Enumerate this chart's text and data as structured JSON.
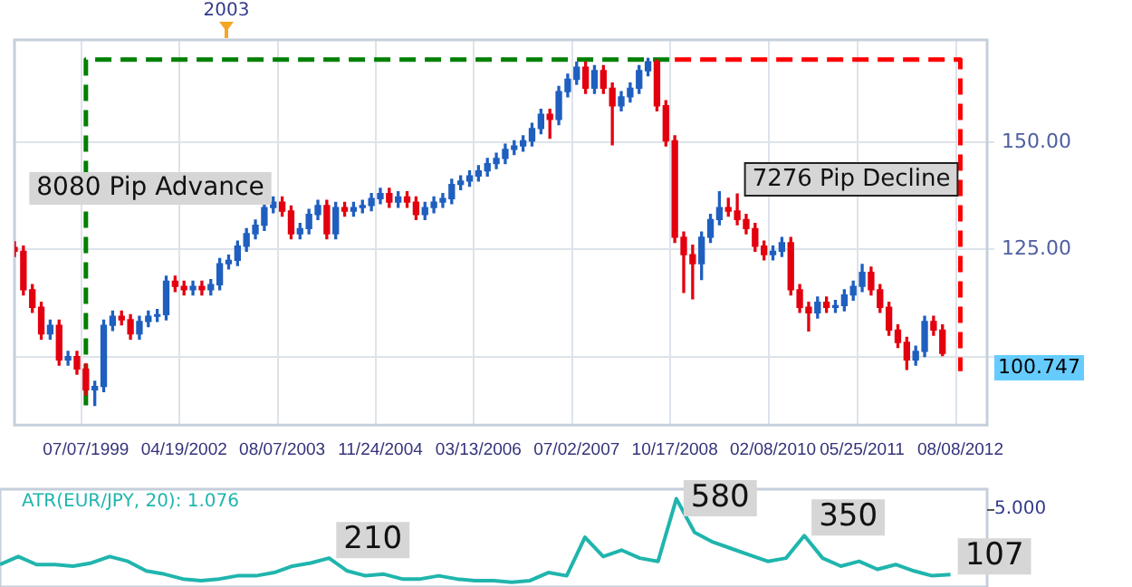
{
  "chart_data": [
    {
      "type": "candlestick",
      "categories": [
        null,
        null,
        null,
        null,
        null,
        null,
        null,
        null,
        "07/07/1999",
        null,
        null,
        null,
        null,
        null,
        null,
        null,
        null,
        null,
        null,
        "04/19/2002",
        null,
        null,
        null,
        null,
        null,
        null,
        null,
        null,
        null,
        null,
        "08/07/2003",
        null,
        null,
        null,
        null,
        null,
        null,
        null,
        null,
        null,
        null,
        "11/24/2004",
        null,
        null,
        null,
        null,
        null,
        null,
        null,
        null,
        null,
        null,
        "03/13/2006",
        null,
        null,
        null,
        null,
        null,
        null,
        null,
        null,
        null,
        null,
        "07/02/2007",
        null,
        null,
        null,
        null,
        null,
        null,
        null,
        null,
        null,
        null,
        "10/17/2008",
        null,
        null,
        null,
        null,
        null,
        null,
        null,
        null,
        null,
        null,
        "02/08/2010",
        null,
        null,
        null,
        null,
        null,
        null,
        null,
        null,
        null,
        "05/25/2011",
        null,
        null,
        null,
        null,
        null,
        null,
        null,
        null,
        null,
        null,
        "08/08/2012",
        null,
        null,
        null
      ],
      "ohlc": [
        [
          125.5,
          126.8,
          123.4,
          124.6
        ],
        [
          124.6,
          125.8,
          114.4,
          115.6
        ],
        [
          115.6,
          116.8,
          110.3,
          111.5
        ],
        [
          111.5,
          112.7,
          104.1,
          105.3
        ],
        [
          105.3,
          108.5,
          104.1,
          107.3
        ],
        [
          107.3,
          108.5,
          98,
          99.2
        ],
        [
          99.2,
          101.2,
          98,
          100
        ],
        [
          100,
          101.2,
          95.9,
          97.1
        ],
        [
          97.1,
          98.3,
          91,
          92.2
        ],
        [
          92.2,
          94.2,
          88.6,
          93
        ],
        [
          93,
          108.5,
          91.8,
          107.3
        ],
        [
          107.3,
          110.6,
          106.1,
          109.4
        ],
        [
          109.4,
          110.6,
          107.4,
          108.6
        ],
        [
          108.6,
          109.8,
          104.1,
          105.3
        ],
        [
          105.3,
          109.4,
          104.1,
          108.2
        ],
        [
          108.2,
          110.6,
          107,
          109.4
        ],
        [
          109.4,
          111,
          108.2,
          109.8
        ],
        [
          109.8,
          118.8,
          108.6,
          117.6
        ],
        [
          117.6,
          118.8,
          115.2,
          116.4
        ],
        [
          116.4,
          117.6,
          114.4,
          115.6
        ],
        [
          115.6,
          117.6,
          114.4,
          116.4
        ],
        [
          116.4,
          117.6,
          114.4,
          115.6
        ],
        [
          115.6,
          118,
          114.4,
          116.8
        ],
        [
          116.8,
          122.9,
          115.6,
          121.7
        ],
        [
          121.7,
          123.7,
          120.5,
          122.5
        ],
        [
          122.5,
          127,
          121.3,
          125.8
        ],
        [
          125.8,
          129.9,
          124.6,
          128.7
        ],
        [
          128.7,
          131.9,
          127.5,
          130.7
        ],
        [
          130.7,
          136,
          129.5,
          134.8
        ],
        [
          134.8,
          137.3,
          133.6,
          136.1
        ],
        [
          136.1,
          137.3,
          132.8,
          134
        ],
        [
          134,
          135.2,
          127.5,
          128.7
        ],
        [
          128.7,
          131.1,
          127.5,
          129.9
        ],
        [
          129.9,
          134.4,
          128.7,
          133.2
        ],
        [
          133.2,
          136.5,
          132,
          135.3
        ],
        [
          135.3,
          136.5,
          127.5,
          128.7
        ],
        [
          128.7,
          136,
          127.5,
          134.8
        ],
        [
          134.8,
          136,
          132.8,
          134
        ],
        [
          134,
          136,
          132.8,
          134.8
        ],
        [
          134.8,
          136.5,
          133.6,
          135.3
        ],
        [
          135.3,
          138.1,
          134.1,
          136.9
        ],
        [
          136.9,
          139.3,
          135.7,
          138.1
        ],
        [
          138.1,
          139.3,
          134.9,
          136.1
        ],
        [
          136.1,
          138.5,
          134.9,
          137.3
        ],
        [
          137.3,
          138.5,
          134.9,
          136.1
        ],
        [
          136.1,
          137.3,
          132,
          133.2
        ],
        [
          133.2,
          136,
          132,
          134.8
        ],
        [
          134.8,
          137.3,
          133.6,
          136.1
        ],
        [
          136.1,
          138.1,
          134.9,
          136.9
        ],
        [
          136.9,
          141.4,
          135.7,
          140.2
        ],
        [
          140.2,
          142.2,
          139,
          141
        ],
        [
          141,
          143.4,
          139.8,
          142.2
        ],
        [
          142.2,
          144.6,
          141,
          143.4
        ],
        [
          143.4,
          146.3,
          142.2,
          145.1
        ],
        [
          145.1,
          147.5,
          143.9,
          146.3
        ],
        [
          146.3,
          149.6,
          145.1,
          148.4
        ],
        [
          148.4,
          150.4,
          147.2,
          149.2
        ],
        [
          149.2,
          151.6,
          148,
          150.4
        ],
        [
          150.4,
          154.5,
          149.2,
          153.3
        ],
        [
          153.3,
          157.8,
          152.1,
          156.6
        ],
        [
          156.6,
          157.8,
          151,
          155.4
        ],
        [
          155.4,
          163.1,
          154.2,
          161.9
        ],
        [
          161.9,
          166,
          160.7,
          164.8
        ],
        [
          164.8,
          168.8,
          163.6,
          167.6
        ],
        [
          167.6,
          168.8,
          161.5,
          162.7
        ],
        [
          162.7,
          168,
          161.5,
          166.8
        ],
        [
          166.8,
          168,
          161.5,
          162.7
        ],
        [
          162.7,
          163.9,
          149.5,
          158.6
        ],
        [
          158.6,
          161.9,
          157.4,
          160.7
        ],
        [
          160.7,
          163.9,
          159.5,
          162.7
        ],
        [
          162.7,
          168,
          161.5,
          166.8
        ],
        [
          166.8,
          169.7,
          165.6,
          168.9
        ],
        [
          168.9,
          169.3,
          157.4,
          158.6
        ],
        [
          158.6,
          159.8,
          149.2,
          150.4
        ],
        [
          150.4,
          151.6,
          126.7,
          127.9
        ],
        [
          127.9,
          129.1,
          115,
          123.8
        ],
        [
          123.8,
          126,
          113.5,
          121.7
        ],
        [
          121.7,
          129.1,
          118,
          127.9
        ],
        [
          127.9,
          133.2,
          126.7,
          132
        ],
        [
          132,
          138.5,
          130.8,
          134.8
        ],
        [
          134.8,
          137,
          132.8,
          134
        ],
        [
          134,
          138,
          130.8,
          132
        ],
        [
          132,
          133.2,
          128.7,
          129.9
        ],
        [
          129.9,
          131.1,
          124.6,
          125.8
        ],
        [
          125.8,
          127,
          122.6,
          123.8
        ],
        [
          123.8,
          125.8,
          122.6,
          124.6
        ],
        [
          124.6,
          127.8,
          123.4,
          126.6
        ],
        [
          126.6,
          127.8,
          114.4,
          115.6
        ],
        [
          115.6,
          116.8,
          110.3,
          111.5
        ],
        [
          111.5,
          112.7,
          106,
          110.2
        ],
        [
          110.2,
          113.9,
          109,
          112.7
        ],
        [
          112.7,
          113.9,
          110.3,
          111.5
        ],
        [
          111.5,
          113.1,
          110.3,
          111.9
        ],
        [
          111.9,
          115.6,
          110.7,
          114.4
        ],
        [
          114.4,
          117.6,
          113.2,
          116.4
        ],
        [
          116.4,
          121.5,
          115.2,
          119.7
        ],
        [
          119.7,
          120.9,
          114.4,
          115.6
        ],
        [
          115.6,
          116.8,
          110.3,
          111.5
        ],
        [
          111.5,
          112.7,
          105,
          106.2
        ],
        [
          106.2,
          107.4,
          102.1,
          103.3
        ],
        [
          103.3,
          104.5,
          97,
          99.2
        ],
        [
          99.2,
          102.4,
          98,
          101.2
        ],
        [
          101.2,
          109.4,
          100,
          108.2
        ],
        [
          108.2,
          109.4,
          105,
          106.2
        ],
        [
          106.2,
          107.4,
          100.2,
          100.747
        ],
        null,
        null,
        null,
        null,
        null
      ],
      "colors": [
        "#e3000f",
        "#e3000f",
        "#e3000f",
        "#e3000f",
        "#1f5fbf",
        "#e3000f",
        "#1f5fbf",
        "#e3000f",
        "#e3000f",
        "#1f5fbf",
        "#1f5fbf",
        "#1f5fbf",
        "#e3000f",
        "#e3000f",
        "#1f5fbf",
        "#1f5fbf",
        "#1f5fbf",
        "#1f5fbf",
        "#e3000f",
        "#e3000f",
        "#1f5fbf",
        "#e3000f",
        "#1f5fbf",
        "#1f5fbf",
        "#1f5fbf",
        "#1f5fbf",
        "#1f5fbf",
        "#1f5fbf",
        "#1f5fbf",
        "#1f5fbf",
        "#e3000f",
        "#e3000f",
        "#1f5fbf",
        "#1f5fbf",
        "#1f5fbf",
        "#e3000f",
        "#1f5fbf",
        "#e3000f",
        "#1f5fbf",
        "#1f5fbf",
        "#1f5fbf",
        "#1f5fbf",
        "#e3000f",
        "#1f5fbf",
        "#e3000f",
        "#e3000f",
        "#1f5fbf",
        "#1f5fbf",
        "#1f5fbf",
        "#1f5fbf",
        "#1f5fbf",
        "#1f5fbf",
        "#1f5fbf",
        "#1f5fbf",
        "#1f5fbf",
        "#1f5fbf",
        "#1f5fbf",
        "#1f5fbf",
        "#1f5fbf",
        "#1f5fbf",
        "#e3000f",
        "#1f5fbf",
        "#1f5fbf",
        "#1f5fbf",
        "#e3000f",
        "#1f5fbf",
        "#e3000f",
        "#e3000f",
        "#1f5fbf",
        "#1f5fbf",
        "#1f5fbf",
        "#1f5fbf",
        "#e3000f",
        "#e3000f",
        "#e3000f",
        "#e3000f",
        "#e3000f",
        "#1f5fbf",
        "#1f5fbf",
        "#1f5fbf",
        "#e3000f",
        "#e3000f",
        "#e3000f",
        "#e3000f",
        "#e3000f",
        "#1f5fbf",
        "#1f5fbf",
        "#e3000f",
        "#e3000f",
        "#e3000f",
        "#1f5fbf",
        "#e3000f",
        "#1f5fbf",
        "#1f5fbf",
        "#1f5fbf",
        "#1f5fbf",
        "#e3000f",
        "#e3000f",
        "#e3000f",
        "#e3000f",
        "#e3000f",
        "#1f5fbf",
        "#1f5fbf",
        "#e3000f",
        "#e3000f",
        null,
        null,
        null,
        null,
        null
      ],
      "ylim": [
        84,
        174
      ],
      "yticks": [
        {
          "value": 100,
          "label": null
        },
        {
          "value": 125,
          "label": "125.00"
        },
        {
          "value": 150,
          "label": "150.00"
        }
      ],
      "grid": true,
      "series": [
        {
          "type": "line",
          "color": "#008000",
          "line_style": "dashed",
          "x": [
            "07/07/1999",
            "07/07/1999",
            "10/17/2008"
          ],
          "values": [
            88.6,
            169.4,
            169.4
          ]
        },
        {
          "type": "line",
          "color": "#ff0000",
          "line_style": "dashed",
          "x": [
            "10/17/2008",
            "08/08/2012",
            "08/08/2012"
          ],
          "values": [
            169.4,
            169.4,
            96.6
          ]
        }
      ],
      "annotations": [
        "8080 Pip Advance",
        "7276 Pip Decline",
        "2003",
        "100.747"
      ]
    },
    {
      "type": "line",
      "title": "ATR(EUR/JPY, 20): 1.076",
      "ylim": [
        30,
        640
      ],
      "categories": [
        null,
        null,
        null,
        null,
        null,
        null,
        null,
        null,
        null,
        null,
        null,
        null,
        null,
        null,
        null,
        null,
        null,
        null,
        null,
        null,
        null,
        null,
        null,
        null,
        null,
        null,
        null,
        null,
        null,
        null,
        null,
        null,
        null,
        null,
        null,
        null,
        null,
        null,
        null,
        null,
        null,
        null,
        null,
        null,
        null,
        null,
        null,
        null,
        null,
        null,
        null,
        null,
        null,
        null,
        null
      ],
      "series": [
        {
          "color": "#1fb5ad",
          "values": [
            170,
            220,
            170,
            170,
            160,
            180,
            220,
            190,
            130,
            110,
            80,
            70,
            80,
            100,
            100,
            120,
            160,
            180,
            210,
            130,
            100,
            110,
            80,
            80,
            100,
            80,
            70,
            70,
            60,
            70,
            120,
            100,
            340,
            220,
            260,
            210,
            190,
            580,
            370,
            310,
            270,
            230,
            190,
            210,
            350,
            210,
            160,
            190,
            140,
            170,
            130,
            100,
            107,
            null,
            null
          ],
          "value_labels": [
            null,
            null,
            null,
            null,
            null,
            null,
            null,
            null,
            null,
            null,
            null,
            null,
            null,
            null,
            null,
            null,
            null,
            null,
            "210",
            null,
            null,
            null,
            null,
            null,
            null,
            null,
            null,
            null,
            null,
            null,
            null,
            null,
            null,
            null,
            null,
            null,
            null,
            "580",
            null,
            null,
            null,
            null,
            null,
            null,
            "350",
            null,
            null,
            null,
            null,
            null,
            null,
            null,
            "107",
            null,
            null
          ]
        }
      ],
      "annotations": [
        "5.000"
      ]
    }
  ]
}
